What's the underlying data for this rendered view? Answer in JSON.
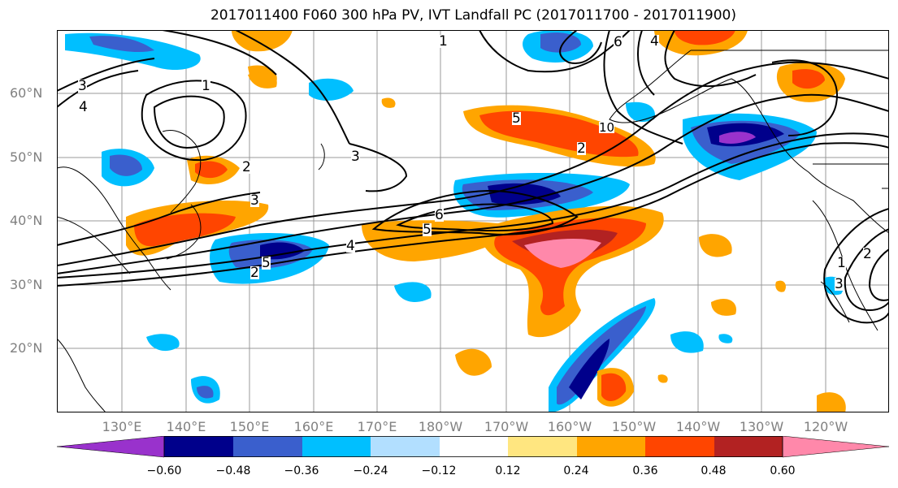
{
  "title": "2017011400 F060 300 hPa PV, IVT Landfall PC (2017011700 - 2017011900)",
  "lat_labels": [
    "60°N",
    "50°N",
    "40°N",
    "30°N",
    "20°N"
  ],
  "lon_labels": [
    "130°E",
    "140°E",
    "150°E",
    "160°E",
    "170°E",
    "180°W",
    "170°W",
    "160°W",
    "150°W",
    "140°W",
    "130°W",
    "120°W"
  ],
  "contour_labels": [
    "3",
    "4",
    "1",
    "2",
    "1",
    "6",
    "4",
    "5",
    "2",
    "3",
    "3",
    "5",
    "6",
    "4",
    "5",
    "2",
    "3",
    "2",
    "1",
    "10"
  ],
  "colorbar": {
    "colors": [
      "#9932cc",
      "#00008b",
      "#3a5fcd",
      "#00bfff",
      "#b2dfff",
      "#ffffff",
      "#ffe680",
      "#ffa500",
      "#ff4500",
      "#b22222",
      "#ff88aa"
    ],
    "tick_labels": [
      "−0.60",
      "−0.48",
      "−0.36",
      "−0.24",
      "−0.12",
      "0.12",
      "0.24",
      "0.36",
      "0.48",
      "0.60"
    ]
  },
  "colors": {
    "gridline": "#999999",
    "contour": "#000000",
    "coastline": "#000000",
    "tick_label": "#808080"
  }
}
